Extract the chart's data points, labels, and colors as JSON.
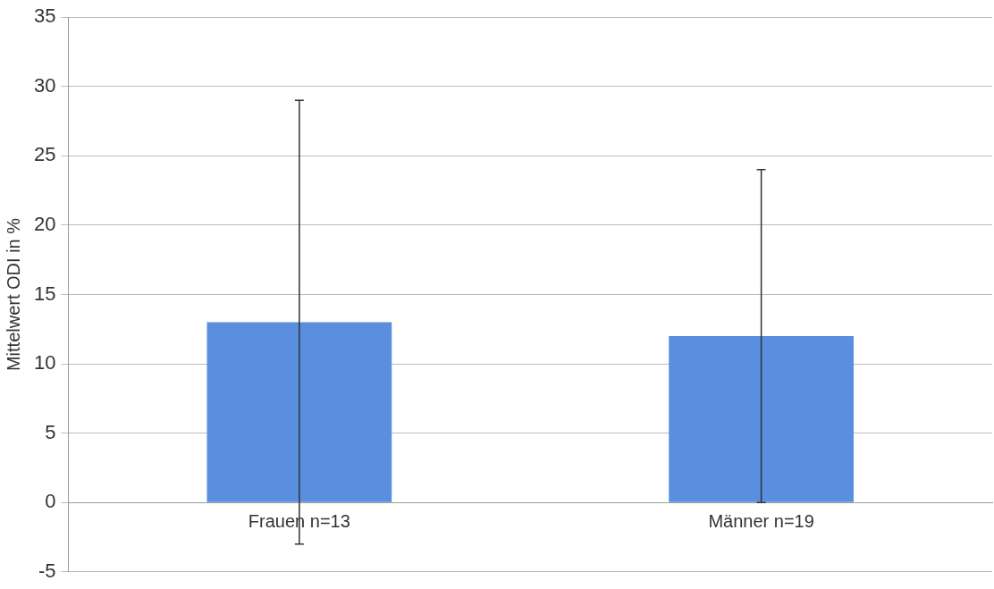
{
  "chart_data": {
    "type": "bar",
    "ylabel": "Mittelwert ODI in %",
    "categories": [
      "Frauen n=13",
      "Männer n=19"
    ],
    "values": [
      13,
      12
    ],
    "errors": [
      16,
      12
    ],
    "color": "#5a8ede",
    "ylim": [
      -5,
      35
    ],
    "yticks": [
      -5,
      0,
      5,
      10,
      15,
      20,
      25,
      30,
      35
    ],
    "grid": "y",
    "legend": false
  }
}
